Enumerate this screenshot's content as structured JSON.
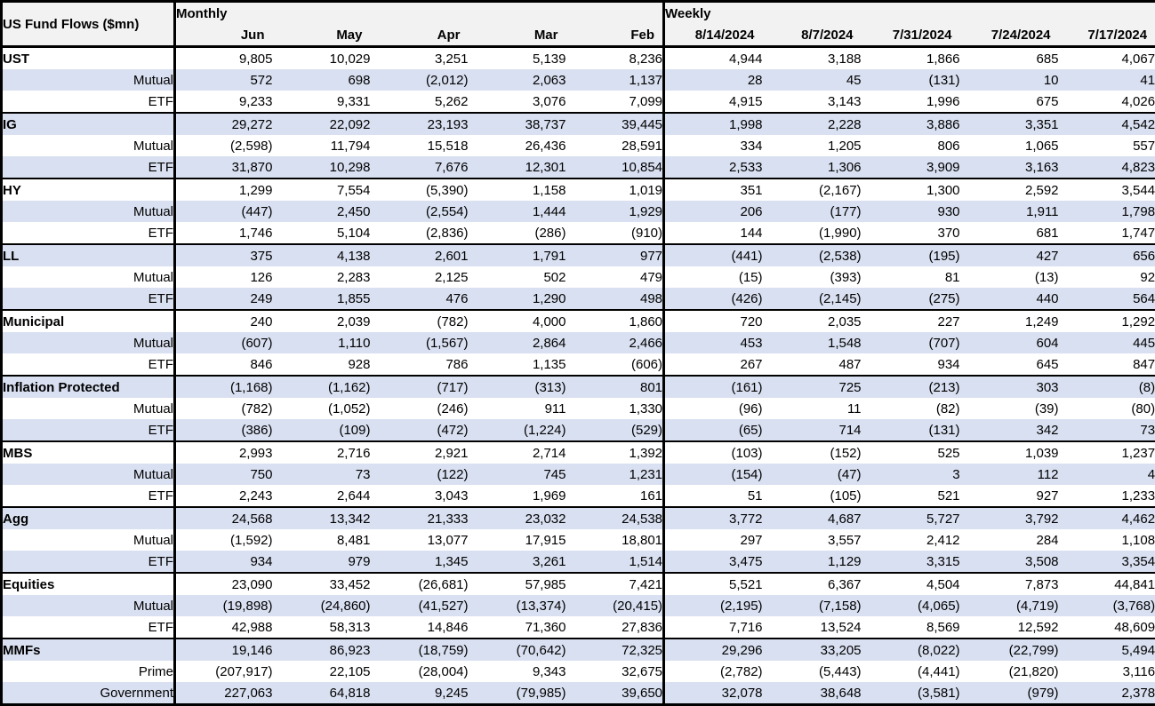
{
  "header": {
    "title": "US Fund Flows ($mn)",
    "monthly_label": "Monthly",
    "weekly_label": "Weekly"
  },
  "colors": {
    "stripe": "#d9e0f1",
    "header_bg": "#f2f2f2",
    "border": "#000000"
  },
  "chart_data": {
    "type": "table",
    "title": "US Fund Flows ($mn)",
    "units": "$mn",
    "number_format": "thousands comma-separated; negatives in parentheses",
    "column_groups": [
      {
        "label": "Monthly",
        "columns": [
          "Jun",
          "May",
          "Apr",
          "Mar",
          "Feb"
        ]
      },
      {
        "label": "Weekly",
        "columns": [
          "8/14/2024",
          "8/7/2024",
          "7/31/2024",
          "7/24/2024",
          "7/17/2024"
        ]
      }
    ],
    "rows": [
      {
        "category": "UST",
        "row_type": "group",
        "values": [
          9805,
          10029,
          3251,
          5139,
          8236,
          4944,
          3188,
          1866,
          685,
          4067
        ]
      },
      {
        "category": "Mutual",
        "row_type": "sub",
        "values": [
          572,
          698,
          -2012,
          2063,
          1137,
          28,
          45,
          -131,
          10,
          41
        ]
      },
      {
        "category": "ETF",
        "row_type": "sub",
        "values": [
          9233,
          9331,
          5262,
          3076,
          7099,
          4915,
          3143,
          1996,
          675,
          4026
        ]
      },
      {
        "category": "IG",
        "row_type": "group",
        "values": [
          29272,
          22092,
          23193,
          38737,
          39445,
          1998,
          2228,
          3886,
          3351,
          4542
        ]
      },
      {
        "category": "Mutual",
        "row_type": "sub",
        "values": [
          -2598,
          11794,
          15518,
          26436,
          28591,
          334,
          1205,
          806,
          1065,
          557
        ]
      },
      {
        "category": "ETF",
        "row_type": "sub",
        "values": [
          31870,
          10298,
          7676,
          12301,
          10854,
          2533,
          1306,
          3909,
          3163,
          4823
        ]
      },
      {
        "category": "HY",
        "row_type": "group",
        "values": [
          1299,
          7554,
          -5390,
          1158,
          1019,
          351,
          -2167,
          1300,
          2592,
          3544
        ]
      },
      {
        "category": "Mutual",
        "row_type": "sub",
        "values": [
          -447,
          2450,
          -2554,
          1444,
          1929,
          206,
          -177,
          930,
          1911,
          1798
        ]
      },
      {
        "category": "ETF",
        "row_type": "sub",
        "values": [
          1746,
          5104,
          -2836,
          -286,
          -910,
          144,
          -1990,
          370,
          681,
          1747
        ]
      },
      {
        "category": "LL",
        "row_type": "group",
        "values": [
          375,
          4138,
          2601,
          1791,
          977,
          -441,
          -2538,
          -195,
          427,
          656
        ]
      },
      {
        "category": "Mutual",
        "row_type": "sub",
        "values": [
          126,
          2283,
          2125,
          502,
          479,
          -15,
          -393,
          81,
          -13,
          92
        ]
      },
      {
        "category": "ETF",
        "row_type": "sub",
        "values": [
          249,
          1855,
          476,
          1290,
          498,
          -426,
          -2145,
          -275,
          440,
          564
        ]
      },
      {
        "category": "Municipal",
        "row_type": "group",
        "values": [
          240,
          2039,
          -782,
          4000,
          1860,
          720,
          2035,
          227,
          1249,
          1292
        ]
      },
      {
        "category": "Mutual",
        "row_type": "sub",
        "values": [
          -607,
          1110,
          -1567,
          2864,
          2466,
          453,
          1548,
          -707,
          604,
          445
        ]
      },
      {
        "category": "ETF",
        "row_type": "sub",
        "values": [
          846,
          928,
          786,
          1135,
          -606,
          267,
          487,
          934,
          645,
          847
        ]
      },
      {
        "category": "Inflation Protected",
        "row_type": "group",
        "values": [
          -1168,
          -1162,
          -717,
          -313,
          801,
          -161,
          725,
          -213,
          303,
          -8
        ]
      },
      {
        "category": "Mutual",
        "row_type": "sub",
        "values": [
          -782,
          -1052,
          -246,
          911,
          1330,
          -96,
          11,
          -82,
          -39,
          -80
        ]
      },
      {
        "category": "ETF",
        "row_type": "sub",
        "values": [
          -386,
          -109,
          -472,
          -1224,
          -529,
          -65,
          714,
          -131,
          342,
          73
        ]
      },
      {
        "category": "MBS",
        "row_type": "group",
        "values": [
          2993,
          2716,
          2921,
          2714,
          1392,
          -103,
          -152,
          525,
          1039,
          1237
        ]
      },
      {
        "category": "Mutual",
        "row_type": "sub",
        "values": [
          750,
          73,
          -122,
          745,
          1231,
          -154,
          -47,
          3,
          112,
          4
        ]
      },
      {
        "category": "ETF",
        "row_type": "sub",
        "values": [
          2243,
          2644,
          3043,
          1969,
          161,
          51,
          -105,
          521,
          927,
          1233
        ]
      },
      {
        "category": "Agg",
        "row_type": "group",
        "values": [
          24568,
          13342,
          21333,
          23032,
          24538,
          3772,
          4687,
          5727,
          3792,
          4462
        ]
      },
      {
        "category": "Mutual",
        "row_type": "sub",
        "values": [
          -1592,
          8481,
          13077,
          17915,
          18801,
          297,
          3557,
          2412,
          284,
          1108
        ]
      },
      {
        "category": "ETF",
        "row_type": "sub",
        "values": [
          934,
          979,
          1345,
          3261,
          1514,
          3475,
          1129,
          3315,
          3508,
          3354
        ]
      },
      {
        "category": "Equities",
        "row_type": "group",
        "values": [
          23090,
          33452,
          -26681,
          57985,
          7421,
          5521,
          6367,
          4504,
          7873,
          44841
        ]
      },
      {
        "category": "Mutual",
        "row_type": "sub",
        "values": [
          -19898,
          -24860,
          -41527,
          -13374,
          -20415,
          -2195,
          -7158,
          -4065,
          -4719,
          -3768
        ]
      },
      {
        "category": "ETF",
        "row_type": "sub",
        "values": [
          42988,
          58313,
          14846,
          71360,
          27836,
          7716,
          13524,
          8569,
          12592,
          48609
        ]
      },
      {
        "category": "MMFs",
        "row_type": "group",
        "values": [
          19146,
          86923,
          -18759,
          -70642,
          72325,
          29296,
          33205,
          -8022,
          -22799,
          5494
        ]
      },
      {
        "category": "Prime",
        "row_type": "sub",
        "values": [
          -207917,
          22105,
          -28004,
          9343,
          32675,
          -2782,
          -5443,
          -4441,
          -21820,
          3116
        ]
      },
      {
        "category": "Government",
        "row_type": "sub",
        "values": [
          227063,
          64818,
          9245,
          -79985,
          39650,
          32078,
          38648,
          -3581,
          -979,
          2378
        ]
      }
    ]
  }
}
